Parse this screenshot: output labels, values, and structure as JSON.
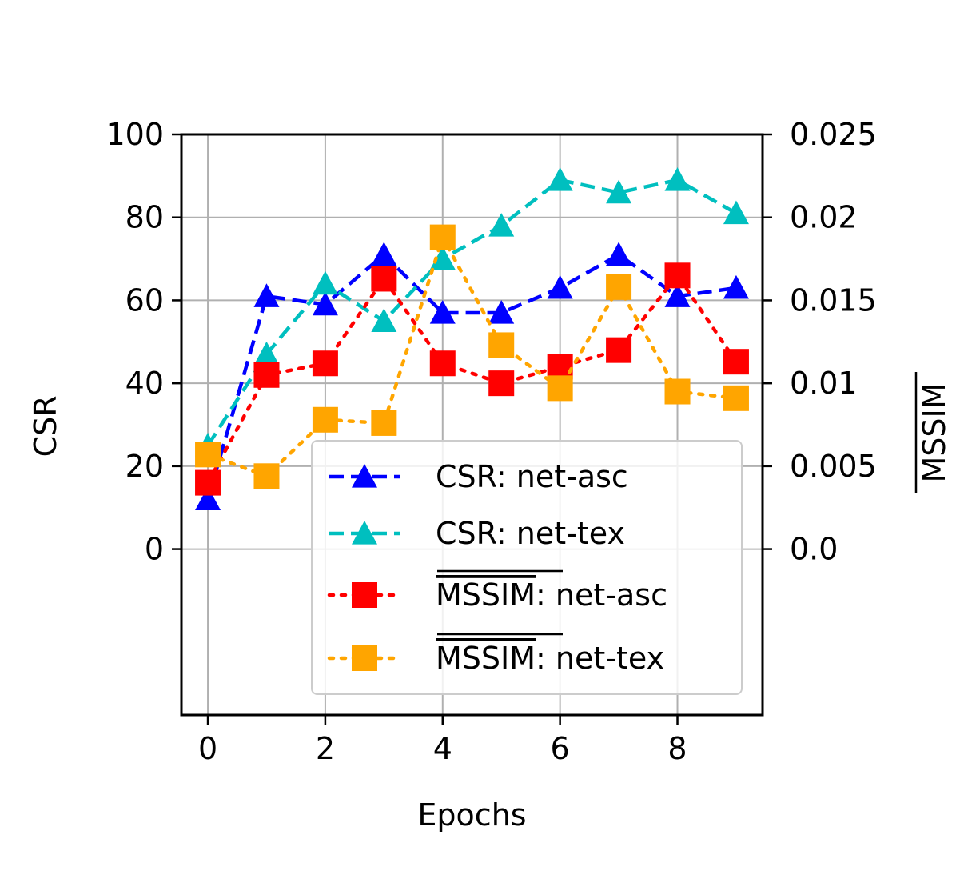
{
  "chart_data": {
    "type": "line",
    "xlabel": "Epochs",
    "ylabel": "CSR",
    "y2label": "MSSIM",
    "x": [
      0,
      1,
      2,
      3,
      4,
      5,
      6,
      7,
      8,
      9
    ],
    "x_ticks": [
      "0",
      "2",
      "4",
      "6",
      "8"
    ],
    "x_tick_values": [
      0,
      2,
      4,
      6,
      8
    ],
    "xlim": [
      -0.45,
      9.45
    ],
    "ylim": [
      -40,
      100
    ],
    "y_ticks": [
      "0",
      "20",
      "40",
      "60",
      "80",
      "100"
    ],
    "y_tick_values": [
      0,
      20,
      40,
      60,
      80,
      100
    ],
    "y2lim": [
      0,
      0.025
    ],
    "y2_ticks": [
      "0.0",
      "0.005",
      "0.01",
      "0.015",
      "0.02",
      "0.025"
    ],
    "y2_tick_values": [
      0,
      0.005,
      0.01,
      0.015,
      0.02,
      0.025
    ],
    "grid": true,
    "legend_position": "lower-right",
    "series": [
      {
        "name": "CSR: net-asc",
        "axis": "left",
        "color": "#0000ff",
        "style": "dashed",
        "marker": "triangle",
        "values": [
          12,
          61,
          59,
          71,
          57,
          57,
          63,
          71,
          61,
          63
        ]
      },
      {
        "name": "CSR: net-tex",
        "axis": "left",
        "color": "#00bfbf",
        "style": "dashed",
        "marker": "triangle",
        "values": [
          25,
          47,
          64,
          55,
          70,
          78,
          89,
          86,
          89,
          81
        ]
      },
      {
        "name": "MSSIM: net-asc",
        "axis": "right",
        "color": "#ff0000",
        "style": "dotted",
        "marker": "square",
        "values": [
          0.004,
          0.0105,
          0.0112,
          0.0163,
          0.0112,
          0.01,
          0.011,
          0.012,
          0.0165,
          0.0113
        ]
      },
      {
        "name": "MSSIM: net-tex",
        "axis": "right",
        "color": "#ffa500",
        "style": "dotted",
        "marker": "square",
        "values": [
          0.0057,
          0.0044,
          0.0078,
          0.0076,
          0.0188,
          0.0123,
          0.0097,
          0.0158,
          0.0095,
          0.0091
        ]
      }
    ],
    "legend": [
      {
        "prefix": "",
        "overline": "",
        "suffix": "CSR: net-asc"
      },
      {
        "prefix": "",
        "overline": "",
        "suffix": "CSR: net-tex"
      },
      {
        "prefix": "",
        "overline": "MSSIM",
        "suffix": ": net-asc"
      },
      {
        "prefix": "",
        "overline": "MSSIM",
        "suffix": ": net-tex"
      }
    ]
  }
}
